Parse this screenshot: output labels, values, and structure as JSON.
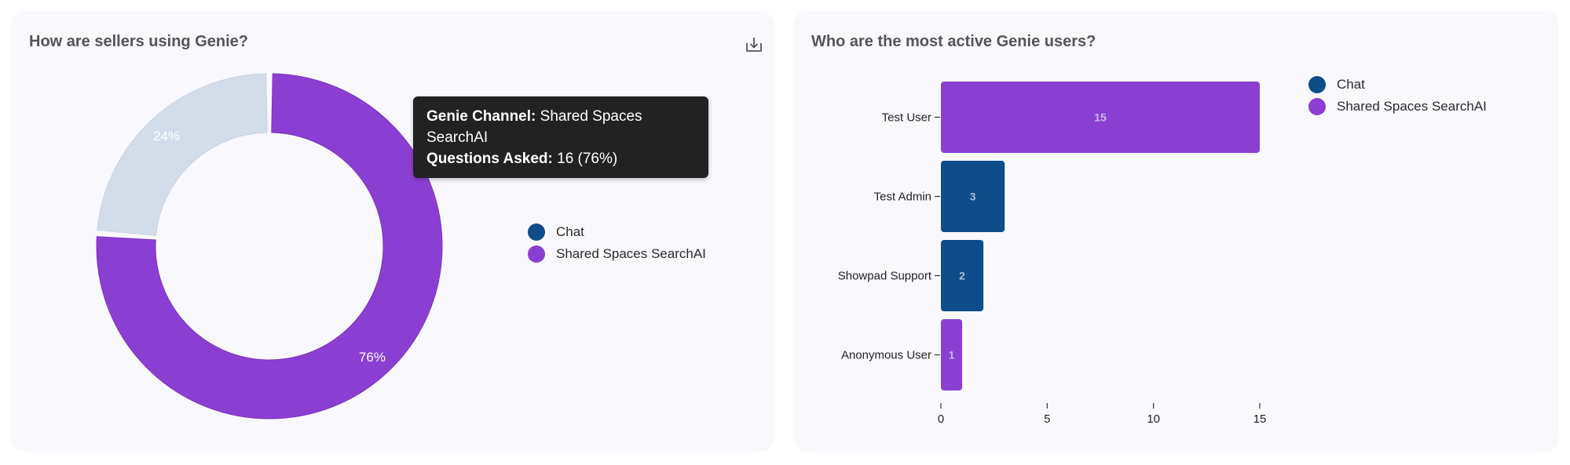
{
  "colors": {
    "chat": "#0e4d8a",
    "shared_spaces": "#8b3fd2",
    "inactive_slice": "#d3ddea",
    "card_bg": "#f9f8fd"
  },
  "left_panel": {
    "title": "How are sellers using Genie?",
    "download_icon": "download-icon",
    "legend": [
      {
        "label": "Chat",
        "color": "#0e4d8a"
      },
      {
        "label": "Shared Spaces SearchAI",
        "color": "#8b3fd2"
      }
    ],
    "tooltip": {
      "channel_key": "Genie Channel:",
      "channel_value": "Shared Spaces SearchAI",
      "questions_key": "Questions Asked:",
      "questions_value": "16 (76%)"
    }
  },
  "right_panel": {
    "title": "Who are the most active Genie users?",
    "legend": [
      {
        "label": "Chat",
        "color": "#0e4d8a"
      },
      {
        "label": "Shared Spaces SearchAI",
        "color": "#8b3fd2"
      }
    ]
  },
  "chart_data": [
    {
      "type": "pie",
      "donut": true,
      "slices": [
        {
          "label": "Shared Spaces SearchAI",
          "value": 16,
          "percent_label": "76%",
          "color": "#8b3fd2"
        },
        {
          "label": "Chat",
          "value": 5,
          "percent_label": "24%",
          "color": "#d3ddea"
        }
      ]
    },
    {
      "type": "bar",
      "orientation": "horizontal",
      "categories": [
        "Test User",
        "Test Admin",
        "Showpad Support",
        "Anonymous User"
      ],
      "values": [
        15,
        3,
        2,
        1
      ],
      "bar_series": [
        "Shared Spaces SearchAI",
        "Chat",
        "Chat",
        "Shared Spaces SearchAI"
      ],
      "xlim": [
        0,
        15
      ],
      "xticks": [
        0,
        5,
        10,
        15
      ]
    }
  ]
}
